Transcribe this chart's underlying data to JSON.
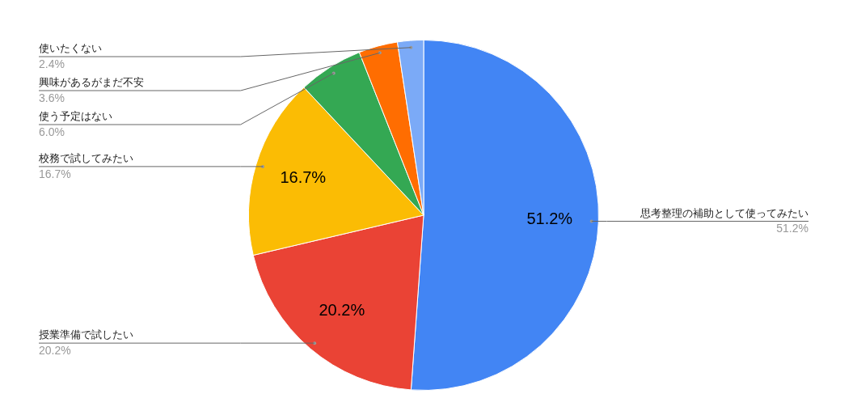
{
  "chart_data": {
    "type": "pie",
    "categories": [
      "思考整理の補助として使ってみたい",
      "授業準備で試したい",
      "校務で試してみたい",
      "使う予定はない",
      "興味があるがまだ不安",
      "使いたくない"
    ],
    "values": [
      51.2,
      20.2,
      16.7,
      6.0,
      3.6,
      2.4
    ],
    "colors": [
      "#4285f4",
      "#ea4335",
      "#fbbc04",
      "#34a853",
      "#ff6d01",
      "#7baaf7"
    ],
    "value_labels": [
      "51.2%",
      "20.2%",
      "16.7%",
      "6.0%",
      "3.6%",
      "2.4%"
    ],
    "legend": false
  }
}
